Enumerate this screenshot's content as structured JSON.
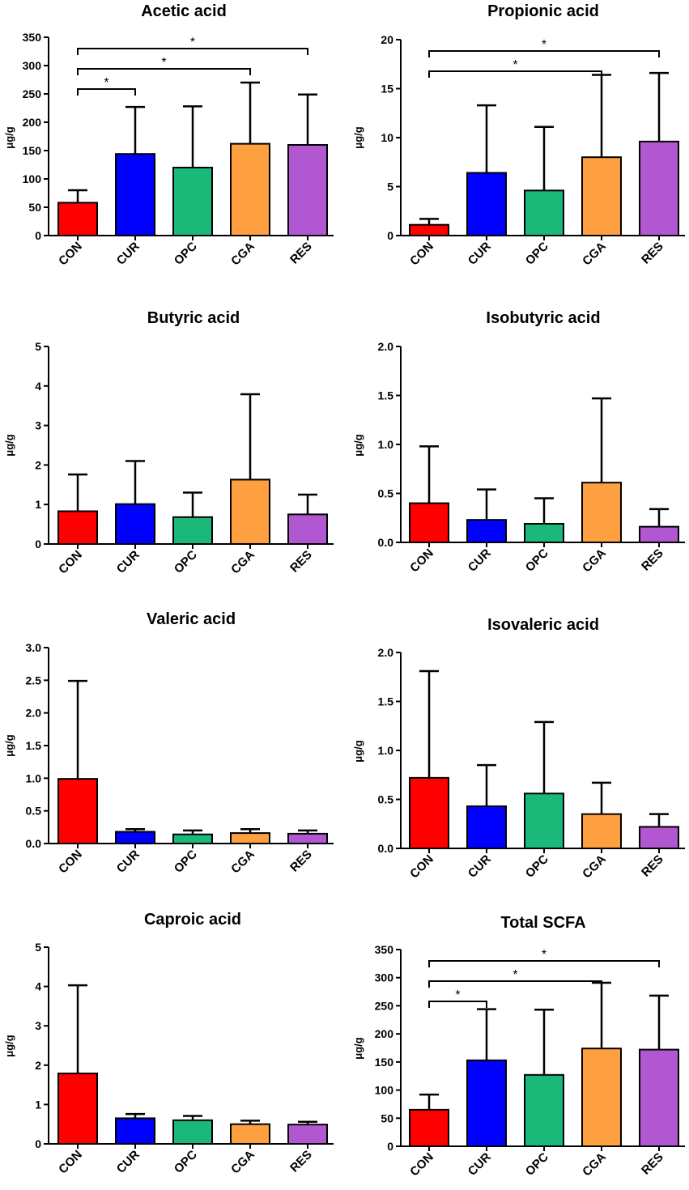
{
  "figure": {
    "categories": [
      "CON",
      "CUR",
      "OPC",
      "CGA",
      "RES"
    ],
    "colors": {
      "CON": "#ff0000",
      "CUR": "#0000ff",
      "OPC": "#1ab97a",
      "CGA": "#ffa040",
      "RES": "#b157d2"
    }
  },
  "chart_data": [
    {
      "type": "bar",
      "title": "Acetic acid",
      "ylabel": "μg/g",
      "categories": [
        "CON",
        "CUR",
        "OPC",
        "CGA",
        "RES"
      ],
      "values": [
        58,
        144,
        120,
        162,
        160
      ],
      "errors": [
        80,
        227,
        228,
        270,
        249
      ],
      "ylim": [
        0,
        350
      ],
      "yticks": [
        0,
        50,
        100,
        150,
        200,
        250,
        300,
        350
      ],
      "ytick_labels": [
        "0",
        "50",
        "100",
        "150",
        "200",
        "250",
        "300",
        "350"
      ],
      "significance": [
        {
          "from": "CON",
          "to": "CUR",
          "label": "*"
        },
        {
          "from": "CON",
          "to": "CGA",
          "label": "*"
        },
        {
          "from": "CON",
          "to": "RES",
          "label": "*"
        }
      ]
    },
    {
      "type": "bar",
      "title": "Propionic acid",
      "ylabel": "μg/g",
      "categories": [
        "CON",
        "CUR",
        "OPC",
        "CGA",
        "RES"
      ],
      "values": [
        1.1,
        6.4,
        4.6,
        8.0,
        9.6
      ],
      "errors": [
        1.7,
        13.3,
        11.1,
        16.4,
        16.6
      ],
      "ylim": [
        0,
        20
      ],
      "yticks": [
        0,
        5,
        10,
        15,
        20
      ],
      "ytick_labels": [
        "0",
        "5",
        "10",
        "15",
        "20"
      ],
      "significance": [
        {
          "from": "CON",
          "to": "CGA",
          "label": "*"
        },
        {
          "from": "CON",
          "to": "RES",
          "label": "*"
        }
      ]
    },
    {
      "type": "bar",
      "title": "Butyric acid",
      "ylabel": "μg/g",
      "categories": [
        "CON",
        "CUR",
        "OPC",
        "CGA",
        "RES"
      ],
      "values": [
        0.83,
        1.01,
        0.68,
        1.63,
        0.75
      ],
      "errors": [
        1.76,
        2.1,
        1.3,
        3.79,
        1.25
      ],
      "ylim": [
        0,
        5
      ],
      "yticks": [
        0,
        1,
        2,
        3,
        4,
        5
      ],
      "ytick_labels": [
        "0",
        "1",
        "2",
        "3",
        "4",
        "5"
      ],
      "significance": []
    },
    {
      "type": "bar",
      "title": "Isobutyric acid",
      "ylabel": "μg/g",
      "categories": [
        "CON",
        "CUR",
        "OPC",
        "CGA",
        "RES"
      ],
      "values": [
        0.4,
        0.23,
        0.19,
        0.61,
        0.16
      ],
      "errors": [
        0.98,
        0.54,
        0.45,
        1.47,
        0.34
      ],
      "ylim": [
        0,
        2
      ],
      "yticks": [
        0,
        0.5,
        1,
        1.5,
        2
      ],
      "ytick_labels": [
        "0.0",
        "0.5",
        "1.0",
        "1.5",
        "2.0"
      ],
      "significance": []
    },
    {
      "type": "bar",
      "title": "Valeric acid",
      "ylabel": "μg/g",
      "categories": [
        "CON",
        "CUR",
        "OPC",
        "CGA",
        "RES"
      ],
      "values": [
        0.99,
        0.18,
        0.14,
        0.16,
        0.15
      ],
      "errors": [
        2.49,
        0.22,
        0.2,
        0.22,
        0.2
      ],
      "ylim": [
        0,
        3
      ],
      "yticks": [
        0,
        0.5,
        1,
        1.5,
        2,
        2.5,
        3
      ],
      "ytick_labels": [
        "0.0",
        "0.5",
        "1.0",
        "1.5",
        "2.0",
        "2.5",
        "3.0"
      ],
      "significance": []
    },
    {
      "type": "bar",
      "title": "Isovaleric acid",
      "ylabel": "μg/g",
      "categories": [
        "CON",
        "CUR",
        "OPC",
        "CGA",
        "RES"
      ],
      "values": [
        0.72,
        0.43,
        0.56,
        0.35,
        0.22
      ],
      "errors": [
        1.81,
        0.85,
        1.29,
        0.67,
        0.35
      ],
      "ylim": [
        0,
        2
      ],
      "yticks": [
        0,
        0.5,
        1,
        1.5,
        2
      ],
      "ytick_labels": [
        "0.0",
        "0.5",
        "1.0",
        "1.5",
        "2.0"
      ],
      "significance": []
    },
    {
      "type": "bar",
      "title": "Caproic acid",
      "ylabel": "μg/g",
      "categories": [
        "CON",
        "CUR",
        "OPC",
        "CGA",
        "RES"
      ],
      "values": [
        1.79,
        0.65,
        0.6,
        0.5,
        0.49
      ],
      "errors": [
        4.03,
        0.76,
        0.71,
        0.59,
        0.56
      ],
      "ylim": [
        0,
        5
      ],
      "yticks": [
        0,
        1,
        2,
        3,
        4,
        5
      ],
      "ytick_labels": [
        "0",
        "1",
        "2",
        "3",
        "4",
        "5"
      ],
      "significance": []
    },
    {
      "type": "bar",
      "title": "Total SCFA",
      "ylabel": "μg/g",
      "categories": [
        "CON",
        "CUR",
        "OPC",
        "CGA",
        "RES"
      ],
      "values": [
        65,
        153,
        127,
        174,
        172
      ],
      "errors": [
        92,
        244,
        243,
        291,
        268
      ],
      "ylim": [
        0,
        350
      ],
      "yticks": [
        0,
        50,
        100,
        150,
        200,
        250,
        300,
        350
      ],
      "ytick_labels": [
        "0",
        "50",
        "100",
        "150",
        "200",
        "250",
        "300",
        "350"
      ],
      "significance": [
        {
          "from": "CON",
          "to": "CUR",
          "label": "*"
        },
        {
          "from": "CON",
          "to": "CGA",
          "label": "*"
        },
        {
          "from": "CON",
          "to": "RES",
          "label": "*"
        }
      ]
    }
  ]
}
